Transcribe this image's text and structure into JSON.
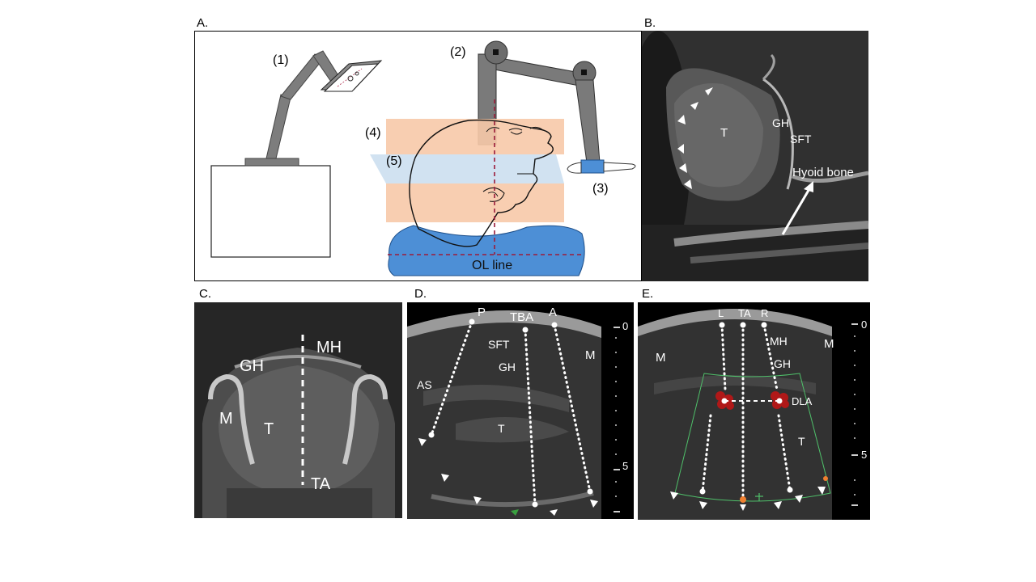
{
  "panels": {
    "a": {
      "letter": "A.",
      "callouts": [
        "(1)",
        "(2)",
        "(3)",
        "(4)",
        "(5)"
      ],
      "ol_line": "OL line"
    },
    "b": {
      "letter": "B.",
      "labels": {
        "t": "T",
        "gh": "GH",
        "sft": "SFT",
        "hyoid": "Hyoid bone"
      }
    },
    "c": {
      "letter": "C.",
      "labels": {
        "gh": "GH",
        "mh": "MH",
        "m": "M",
        "t": "T",
        "ta": "TA"
      }
    },
    "d": {
      "letter": "D.",
      "labels": {
        "p": "P",
        "tba": "TBA",
        "a": "A",
        "sft": "SFT",
        "gh": "GH",
        "as": "AS",
        "t": "T",
        "m": "M"
      },
      "scale": {
        "top": "0",
        "mid": "5"
      }
    },
    "e": {
      "letter": "E.",
      "labels": {
        "l": "L",
        "ta": "TA",
        "r": "R",
        "mh": "MH",
        "gh": "GH",
        "dla": "DLA",
        "t": "T",
        "m_left": "M",
        "m_right": "M"
      },
      "scale": {
        "top": "0",
        "mid": "5"
      }
    }
  }
}
